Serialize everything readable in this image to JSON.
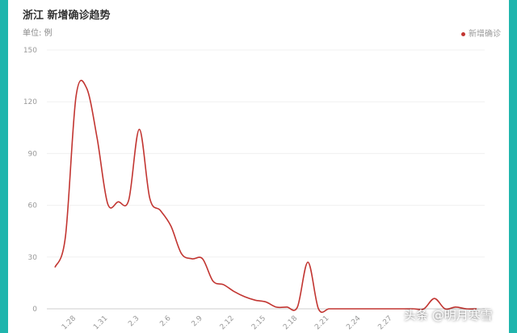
{
  "header": {
    "title": "浙江 新增确诊趋势",
    "unit": "单位: 例"
  },
  "watermark": "头条 @明月寒雪",
  "colors": {
    "line": "#c23531",
    "frame": "#1fb5ad"
  },
  "chart_data": {
    "type": "line",
    "title": "浙江 新增确诊趋势",
    "ylabel": "单位: 例",
    "ylim": [
      0,
      150
    ],
    "yticks": [
      0,
      30,
      60,
      90,
      120,
      150
    ],
    "xtick_labels": [
      "1.28",
      "1.31",
      "2.3",
      "2.6",
      "2.9",
      "2.12",
      "2.15",
      "2.18",
      "2.21",
      "2.24",
      "2.27"
    ],
    "grid": true,
    "legend": "top-right",
    "series": [
      {
        "name": "新增确诊",
        "color": "#c23531",
        "x": [
          "1.26",
          "1.27",
          "1.28",
          "1.29",
          "1.30",
          "1.31",
          "2.1",
          "2.2",
          "2.3",
          "2.4",
          "2.5",
          "2.6",
          "2.7",
          "2.8",
          "2.9",
          "2.10",
          "2.11",
          "2.12",
          "2.13",
          "2.14",
          "2.15",
          "2.16",
          "2.17",
          "2.18",
          "2.19",
          "2.20",
          "2.21",
          "2.22",
          "2.23",
          "2.24",
          "2.25",
          "2.26",
          "2.27",
          "2.28",
          "2.29",
          "3.1",
          "3.2",
          "3.3",
          "3.4",
          "3.5",
          "3.6"
        ],
        "values": [
          24,
          42,
          123,
          128,
          99,
          61,
          62,
          63,
          104,
          64,
          57,
          48,
          32,
          29,
          29,
          16,
          14,
          10,
          7,
          5,
          4,
          1,
          1,
          1,
          27,
          0,
          0,
          0,
          0,
          0,
          0,
          0,
          0,
          0,
          0,
          0,
          6,
          0,
          1,
          0,
          0
        ]
      }
    ]
  }
}
